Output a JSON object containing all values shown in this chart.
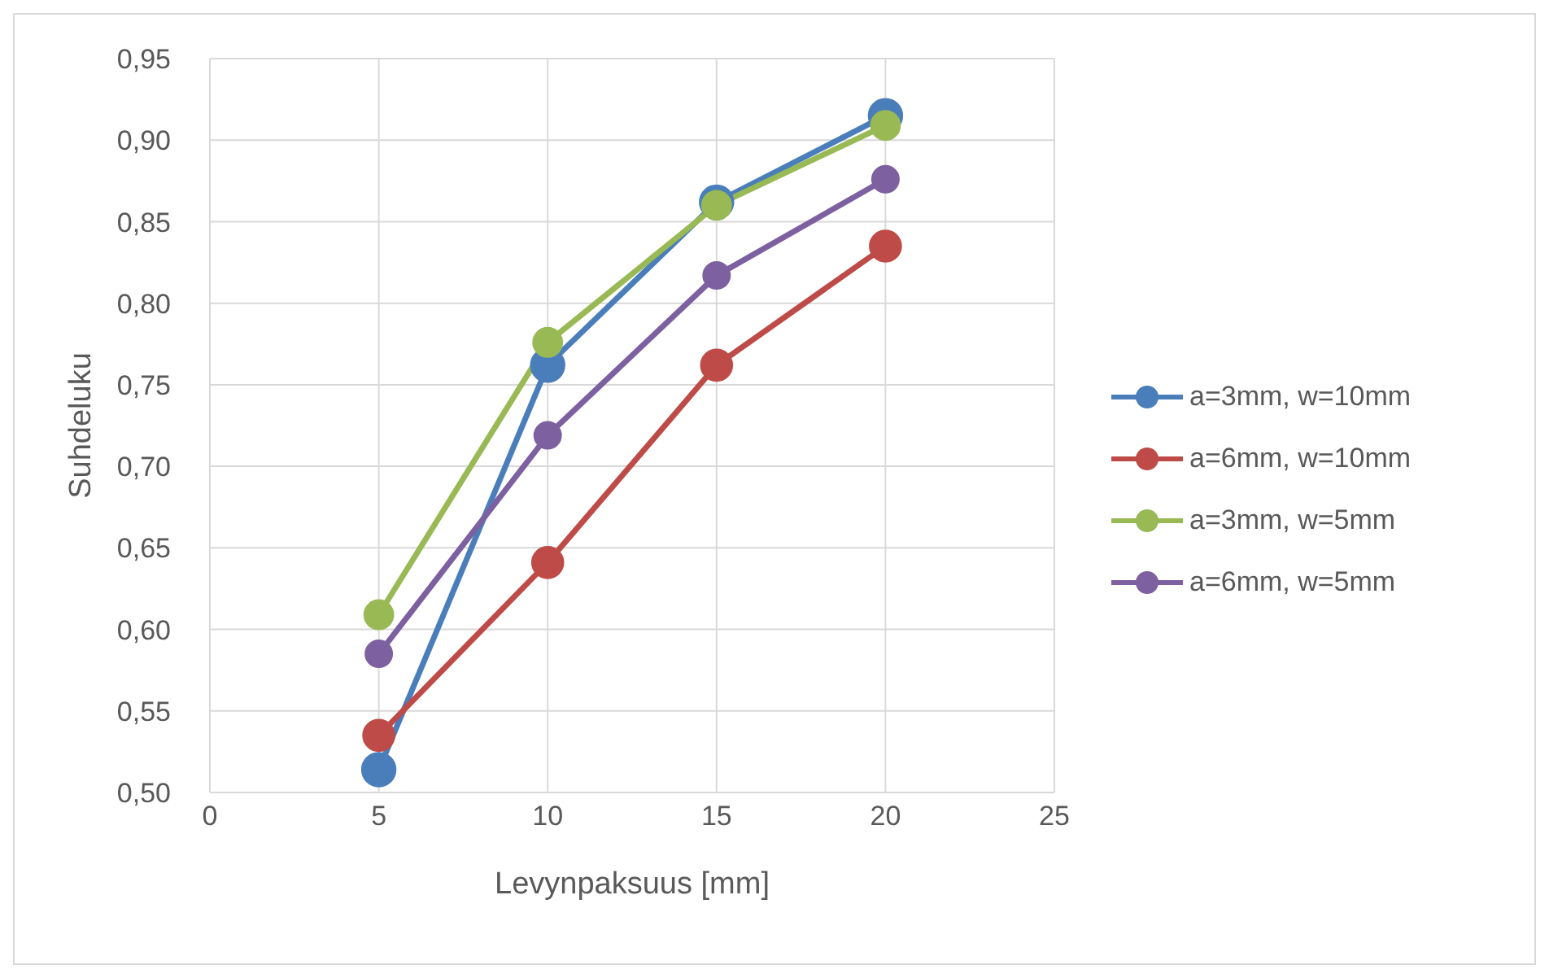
{
  "chart_data": {
    "type": "line",
    "xlabel": "Levynpaksuus [mm]",
    "ylabel": "Suhdeluku",
    "x": [
      5,
      10,
      15,
      20
    ],
    "series": [
      {
        "name": "a=3mm, w=10mm",
        "color": "#4a7ebb",
        "values": [
          0.514,
          0.762,
          0.862,
          0.915
        ]
      },
      {
        "name": "a=6mm, w=10mm",
        "color": "#be4b48",
        "values": [
          0.535,
          0.641,
          0.762,
          0.835
        ]
      },
      {
        "name": "a=3mm, w=5mm",
        "color": "#98b954",
        "values": [
          0.609,
          0.776,
          0.86,
          0.909
        ]
      },
      {
        "name": "a=6mm, w=5mm",
        "color": "#7d60a0",
        "values": [
          0.585,
          0.719,
          0.817,
          0.876
        ]
      }
    ],
    "xlim": [
      0,
      25
    ],
    "xticks": [
      0,
      5,
      10,
      15,
      20,
      25
    ],
    "ylim": [
      0.5,
      0.95
    ],
    "yticks": [
      {
        "value": 0.5,
        "label": "0,50"
      },
      {
        "value": 0.55,
        "label": "0,55"
      },
      {
        "value": 0.6,
        "label": "0,60"
      },
      {
        "value": 0.65,
        "label": "0,65"
      },
      {
        "value": 0.7,
        "label": "0,70"
      },
      {
        "value": 0.75,
        "label": "0,75"
      },
      {
        "value": 0.8,
        "label": "0,80"
      },
      {
        "value": 0.85,
        "label": "0,85"
      },
      {
        "value": 0.9,
        "label": "0,90"
      },
      {
        "value": 0.95,
        "label": "0,95"
      }
    ],
    "grid": true,
    "legend": "right",
    "marker": "circle",
    "line_style": "solid"
  }
}
